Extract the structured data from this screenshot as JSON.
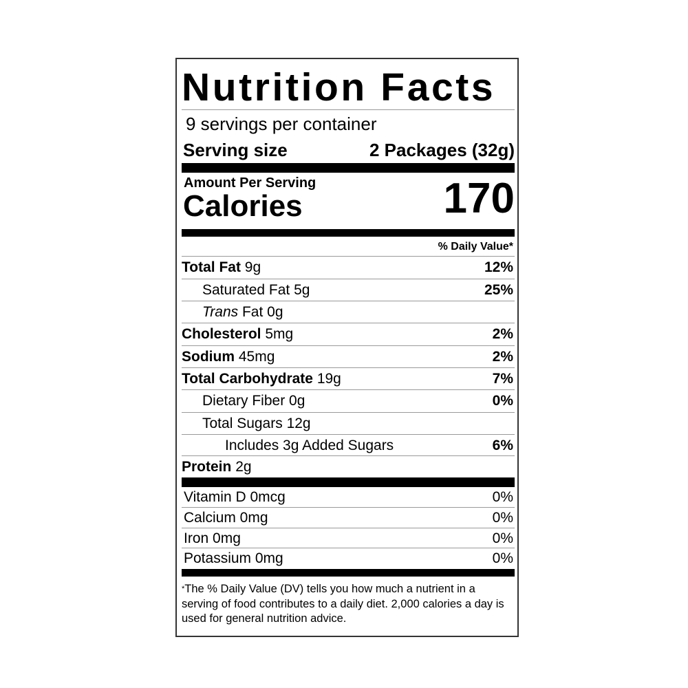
{
  "title": "Nutrition Facts",
  "servings_per_container": "9 servings per container",
  "serving_size": {
    "label": "Serving size",
    "value": "2 Packages (32g)"
  },
  "amount_per_serving": "Amount Per Serving",
  "calories": {
    "label": "Calories",
    "value": "170"
  },
  "daily_value_header": "% Daily Value*",
  "nutrients": [
    {
      "name": "Total Fat",
      "amount": "9g",
      "dv": "12%"
    },
    {
      "name": "Saturated Fat",
      "amount": "5g",
      "dv": "25%"
    },
    {
      "name": "Trans",
      "amount": "Fat 0g",
      "dv": ""
    },
    {
      "name": "Cholesterol",
      "amount": "5mg",
      "dv": "2%"
    },
    {
      "name": "Sodium",
      "amount": "45mg",
      "dv": "2%"
    },
    {
      "name": "Total Carbohydrate",
      "amount": "19g",
      "dv": "7%"
    },
    {
      "name": "Dietary Fiber",
      "amount": "0g",
      "dv": "0%"
    },
    {
      "name": "Total Sugars",
      "amount": "12g",
      "dv": ""
    },
    {
      "name": "Includes 3g Added Sugars",
      "amount": "",
      "dv": "6%"
    },
    {
      "name": "Protein",
      "amount": "2g",
      "dv": ""
    }
  ],
  "vitamins": [
    {
      "label": "Vitamin D 0mcg",
      "dv": "0%"
    },
    {
      "label": "Calcium 0mg",
      "dv": "0%"
    },
    {
      "label": "Iron 0mg",
      "dv": "0%"
    },
    {
      "label": "Potassium 0mg",
      "dv": "0%"
    }
  ],
  "footnote": {
    "mark": "*",
    "text": "The % Daily Value (DV) tells you how much a nutrient in a serving of food contributes to a daily diet. 2,000 calories a day is used for general nutrition advice."
  }
}
